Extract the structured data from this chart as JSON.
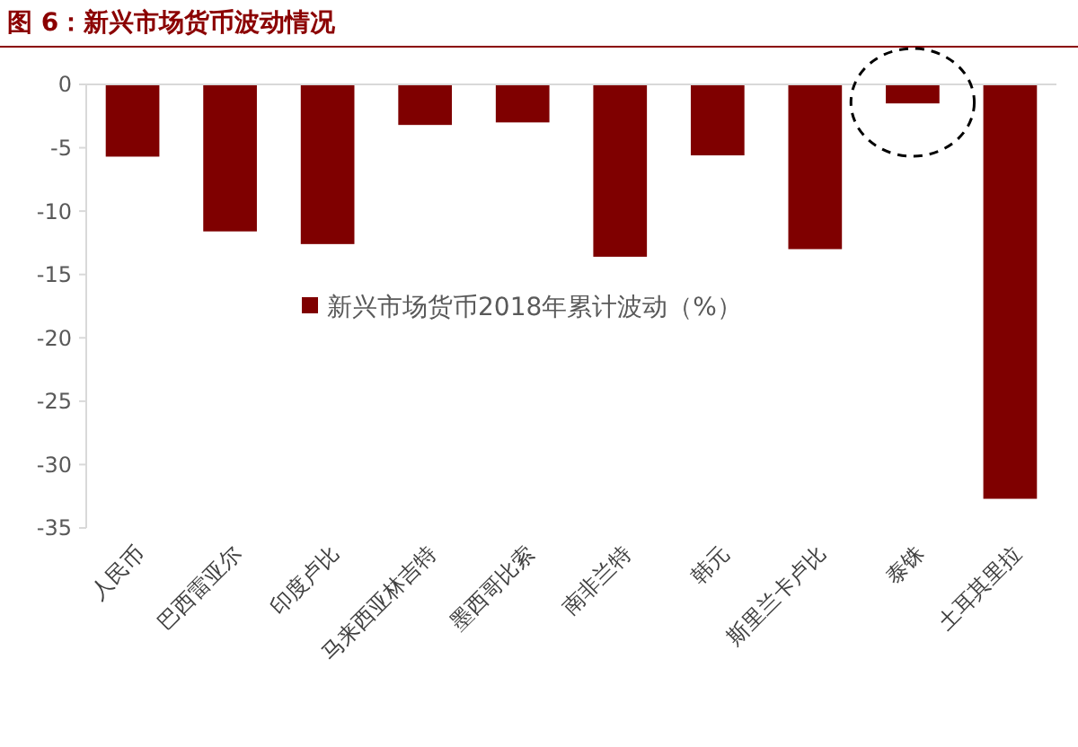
{
  "chart_data": {
    "type": "bar",
    "title": "图 6：新兴市场货币波动情况",
    "categories": [
      "人民币",
      "巴西雷亚尔",
      "印度卢比",
      "马来西亚林吉特",
      "墨西哥比索",
      "南非兰特",
      "韩元",
      "斯里兰卡卢比",
      "泰铢",
      "土耳其里拉"
    ],
    "series": [
      {
        "name": "新兴市场货币2018年累计波动（%）",
        "color": "#7f0000",
        "values": [
          -5.7,
          -11.6,
          -12.6,
          -3.2,
          -3.0,
          -13.6,
          -5.6,
          -13.0,
          -1.5,
          -32.7
        ]
      }
    ],
    "ylim": [
      -35,
      0
    ],
    "yticks": [
      0,
      -5,
      -10,
      -15,
      -20,
      -25,
      -30,
      -35
    ],
    "grid": false,
    "legend": "center"
  }
}
